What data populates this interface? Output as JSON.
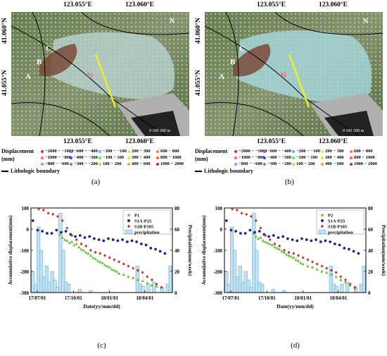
{
  "maps": [
    {
      "id": "a",
      "caption": "(a)",
      "top_coords": [
        "123.055°E",
        "123.060°E"
      ],
      "bottom_coords": [
        "123.055°E",
        "123.060°E"
      ],
      "left_coords": [
        "41.060°N",
        "41.055°N"
      ],
      "labels": [
        "A",
        "B",
        "C",
        "P1"
      ],
      "scale": "0   100   200 m",
      "north": "N"
    },
    {
      "id": "b",
      "caption": "(b)",
      "top_coords": [
        "123.055°E",
        "123.060°E"
      ],
      "bottom_coords": [
        "123.055°E",
        "123.060°E"
      ],
      "left_coords": [
        "41.060°N",
        "41.055°N"
      ],
      "labels": [
        "A",
        "B",
        "C",
        "P2"
      ],
      "scale": "0   100   200 m",
      "north": "N"
    }
  ],
  "legend": {
    "title": "Displacement",
    "unit": "(mm)",
    "items": [
      {
        "label": "−2000 − −1000",
        "color": "#ff2020"
      },
      {
        "label": "−1000 − −800",
        "color": "#ff6060"
      },
      {
        "label": "−800 − −600",
        "color": "#e070ff"
      },
      {
        "label": "−600 − −400",
        "color": "#c040e0"
      },
      {
        "label": "−400 − −300",
        "color": "#4040ff"
      },
      {
        "label": "−300 − −200",
        "color": "#4090ff"
      },
      {
        "label": "−200 − −100",
        "color": "#40c0ff"
      },
      {
        "label": "−100 − 100",
        "color": "#60e060"
      },
      {
        "label": "100 − 200",
        "color": "#a0f040"
      },
      {
        "label": "200 − 300",
        "color": "#e0f040"
      },
      {
        "label": "300 − 400",
        "color": "#ffd040"
      },
      {
        "label": "400 − 600",
        "color": "#ffa040"
      },
      {
        "label": "600 − 800",
        "color": "#ff8040"
      },
      {
        "label": "800 − 1000",
        "color": "#ff6020"
      },
      {
        "label": "1000 − 2000",
        "color": "#e02020"
      }
    ],
    "boundary": "Lithologic boundary"
  },
  "chart_data": [
    {
      "type": "line",
      "caption": "(c)",
      "xlabel": "Date(yy/mm/dd)",
      "ylabel": "Accumulative displacement(mm)",
      "y2label": "Precipitation(mm/week)",
      "xticks": [
        "17/07/01",
        "17/10/01",
        "18/01/01",
        "18/04/01"
      ],
      "x_range": [
        "2017-06-15",
        "2018-06-10"
      ],
      "ylim": [
        -300,
        100
      ],
      "yticks": [
        -300,
        -200,
        -100,
        0,
        100
      ],
      "y2lim": [
        0,
        80
      ],
      "y2ticks": [
        0,
        20,
        40,
        60,
        80
      ],
      "legend": [
        "P1",
        "S1A-P25",
        "S1B-P105",
        "precipitation"
      ],
      "series": [
        {
          "name": "P1",
          "color": "#6abf3c",
          "marker": "triangle",
          "x": [
            "2017-08-28",
            "2017-09-03",
            "2017-09-09",
            "2017-09-15",
            "2017-09-21",
            "2017-09-27",
            "2017-10-03",
            "2017-10-09",
            "2017-10-15",
            "2017-10-21",
            "2017-10-27",
            "2017-11-02",
            "2017-11-08",
            "2017-11-14",
            "2017-11-20",
            "2017-11-26",
            "2017-12-02",
            "2017-12-08",
            "2017-12-14",
            "2017-12-20",
            "2017-12-26",
            "2018-01-01",
            "2018-01-07",
            "2018-01-13",
            "2018-01-19",
            "2018-01-25",
            "2018-02-06",
            "2018-02-18",
            "2018-03-02",
            "2018-03-14",
            "2018-03-26",
            "2018-04-07",
            "2018-04-19",
            "2018-05-01",
            "2018-05-13"
          ],
          "y": [
            -25,
            -40,
            -50,
            -55,
            -65,
            -60,
            -75,
            -70,
            -85,
            -95,
            -100,
            -110,
            -115,
            -125,
            -135,
            -140,
            -150,
            -155,
            -160,
            -170,
            -175,
            -180,
            -190,
            -195,
            -200,
            -210,
            -215,
            -225,
            -230,
            -240,
            -245,
            -255,
            -265,
            -270,
            -275
          ]
        },
        {
          "name": "S1A-P25",
          "color": "#1a2a80",
          "marker": "circle",
          "x": [
            "2017-06-20",
            "2017-07-02",
            "2017-07-14",
            "2017-07-26",
            "2017-08-07",
            "2017-08-19",
            "2017-08-31",
            "2017-09-12",
            "2017-09-24",
            "2017-10-06",
            "2017-10-18",
            "2017-10-30",
            "2017-11-11",
            "2017-11-23",
            "2017-12-05",
            "2017-12-17",
            "2017-12-29",
            "2018-01-10",
            "2018-01-22",
            "2018-02-03",
            "2018-02-15",
            "2018-02-27",
            "2018-03-11",
            "2018-03-23",
            "2018-04-04",
            "2018-04-16",
            "2018-04-28",
            "2018-05-10",
            "2018-05-22"
          ],
          "y": [
            40,
            -5,
            -10,
            -20,
            -20,
            -5,
            -15,
            -10,
            -25,
            -35,
            -30,
            -40,
            -35,
            -45,
            -50,
            -55,
            -45,
            -50,
            -55,
            -50,
            -60,
            -55,
            -60,
            -70,
            -75,
            -90,
            -95,
            -105,
            -115
          ]
        },
        {
          "name": "S1B-P105",
          "color": "#c0392b",
          "marker": "diamond",
          "x": [
            "2017-07-05",
            "2017-07-17",
            "2017-07-29",
            "2017-08-10",
            "2017-08-22",
            "2017-09-03",
            "2017-09-15",
            "2017-09-27",
            "2017-10-09",
            "2017-10-21",
            "2017-11-02",
            "2017-11-14",
            "2017-11-26",
            "2017-12-08",
            "2017-12-20",
            "2018-01-01",
            "2018-01-13",
            "2018-01-25",
            "2018-02-06",
            "2018-02-18",
            "2018-03-02",
            "2018-03-14",
            "2018-03-26",
            "2018-04-07",
            "2018-04-19",
            "2018-05-01",
            "2018-05-13"
          ],
          "y": [
            95,
            90,
            75,
            70,
            60,
            40,
            5,
            -30,
            -50,
            -70,
            -80,
            -100,
            -110,
            -115,
            -125,
            -135,
            -145,
            -155,
            -165,
            -175,
            -185,
            -195,
            -205,
            -225,
            -240,
            -260,
            -275
          ]
        }
      ],
      "precipitation": {
        "x": [
          "2017-06-20",
          "2017-06-27",
          "2017-07-04",
          "2017-07-11",
          "2017-07-18",
          "2017-07-25",
          "2017-08-01",
          "2017-08-08",
          "2017-08-15",
          "2017-08-22",
          "2017-08-29",
          "2017-09-05",
          "2017-09-12",
          "2017-09-19",
          "2017-10-17",
          "2017-11-14",
          "2018-03-13",
          "2018-03-20",
          "2018-03-27",
          "2018-04-10",
          "2018-04-24",
          "2018-05-15",
          "2018-05-29",
          "2018-06-05"
        ],
        "values": [
          20,
          8,
          62,
          40,
          15,
          25,
          10,
          20,
          12,
          5,
          75,
          40,
          10,
          8,
          3,
          2,
          25,
          8,
          6,
          8,
          10,
          5,
          8,
          25
        ]
      }
    },
    {
      "type": "line",
      "caption": "(d)",
      "xlabel": "Date(yy/mm/dd)",
      "ylabel": "Accumulative displacement(mm)",
      "y2label": "Precipitation(mm/week)",
      "xticks": [
        "17/07/01",
        "17/10/01",
        "18/01/01",
        "18/04/01"
      ],
      "x_range": [
        "2017-06-15",
        "2018-06-10"
      ],
      "ylim": [
        -300,
        100
      ],
      "yticks": [
        -300,
        -200,
        -100,
        0,
        100
      ],
      "y2lim": [
        0,
        80
      ],
      "y2ticks": [
        0,
        20,
        40,
        60,
        80
      ],
      "legend": [
        "P2",
        "S1A-P25",
        "S1B-P105",
        "precipitation"
      ],
      "series": [
        {
          "name": "P2",
          "color": "#6abf3c",
          "marker": "triangle",
          "x": [
            "2017-08-28",
            "2017-09-03",
            "2017-09-09",
            "2017-09-15",
            "2017-09-21",
            "2017-09-27",
            "2017-10-03",
            "2017-10-09",
            "2017-10-15",
            "2017-10-21",
            "2017-10-27",
            "2017-11-02",
            "2017-11-08",
            "2017-11-14",
            "2017-11-20",
            "2017-11-26",
            "2017-12-02",
            "2017-12-08",
            "2017-12-14",
            "2017-12-20",
            "2017-12-26",
            "2018-01-01",
            "2018-01-13",
            "2018-01-25",
            "2018-02-06",
            "2018-02-18",
            "2018-03-02",
            "2018-03-14",
            "2018-03-26",
            "2018-04-07",
            "2018-04-19",
            "2018-05-01",
            "2018-05-13"
          ],
          "y": [
            -20,
            -35,
            -45,
            -40,
            -55,
            -60,
            -65,
            -70,
            -75,
            -85,
            -90,
            -95,
            -105,
            -110,
            -120,
            -125,
            -130,
            -135,
            -145,
            -150,
            -160,
            -165,
            -175,
            -180,
            -190,
            -200,
            -205,
            -215,
            -225,
            -240,
            -250,
            -265,
            -280
          ]
        },
        {
          "name": "S1A-P25",
          "color": "#1a2a80",
          "marker": "circle",
          "x": [
            "2017-06-20",
            "2017-07-02",
            "2017-07-14",
            "2017-07-26",
            "2017-08-07",
            "2017-08-19",
            "2017-08-31",
            "2017-09-12",
            "2017-09-24",
            "2017-10-06",
            "2017-10-18",
            "2017-10-30",
            "2017-11-11",
            "2017-11-23",
            "2017-12-05",
            "2017-12-17",
            "2017-12-29",
            "2018-01-10",
            "2018-01-22",
            "2018-02-03",
            "2018-02-15",
            "2018-02-27",
            "2018-03-11",
            "2018-03-23",
            "2018-04-04",
            "2018-04-16",
            "2018-04-28",
            "2018-05-10",
            "2018-05-22"
          ],
          "y": [
            40,
            -5,
            -10,
            -20,
            -20,
            -5,
            -15,
            -10,
            -25,
            -35,
            -30,
            -40,
            -35,
            -45,
            -50,
            -55,
            -45,
            -50,
            -55,
            -50,
            -60,
            -55,
            -60,
            -70,
            -75,
            -90,
            -95,
            -105,
            -115
          ]
        },
        {
          "name": "S1B-P105",
          "color": "#c0392b",
          "marker": "diamond",
          "x": [
            "2017-07-05",
            "2017-07-17",
            "2017-07-29",
            "2017-08-10",
            "2017-08-22",
            "2017-09-03",
            "2017-09-15",
            "2017-09-27",
            "2017-10-09",
            "2017-10-21",
            "2017-11-02",
            "2017-11-14",
            "2017-11-26",
            "2017-12-08",
            "2017-12-20",
            "2018-01-01",
            "2018-01-13",
            "2018-01-25",
            "2018-02-06",
            "2018-02-18",
            "2018-03-02",
            "2018-03-14",
            "2018-03-26",
            "2018-04-07",
            "2018-04-19",
            "2018-05-01",
            "2018-05-13"
          ],
          "y": [
            95,
            90,
            75,
            70,
            60,
            40,
            5,
            -30,
            -50,
            -70,
            -80,
            -100,
            -110,
            -115,
            -125,
            -135,
            -145,
            -155,
            -165,
            -175,
            -185,
            -195,
            -205,
            -225,
            -240,
            -260,
            -275
          ]
        }
      ],
      "precipitation": {
        "x": [
          "2017-06-20",
          "2017-06-27",
          "2017-07-04",
          "2017-07-11",
          "2017-07-18",
          "2017-07-25",
          "2017-08-01",
          "2017-08-08",
          "2017-08-15",
          "2017-08-22",
          "2017-08-29",
          "2017-09-05",
          "2017-09-12",
          "2017-09-19",
          "2017-10-17",
          "2017-11-14",
          "2018-03-13",
          "2018-03-20",
          "2018-03-27",
          "2018-04-10",
          "2018-04-24",
          "2018-05-15",
          "2018-05-29",
          "2018-06-05"
        ],
        "values": [
          20,
          8,
          62,
          40,
          15,
          25,
          10,
          20,
          12,
          5,
          75,
          40,
          10,
          8,
          3,
          2,
          25,
          8,
          6,
          8,
          10,
          5,
          8,
          25
        ]
      }
    }
  ]
}
